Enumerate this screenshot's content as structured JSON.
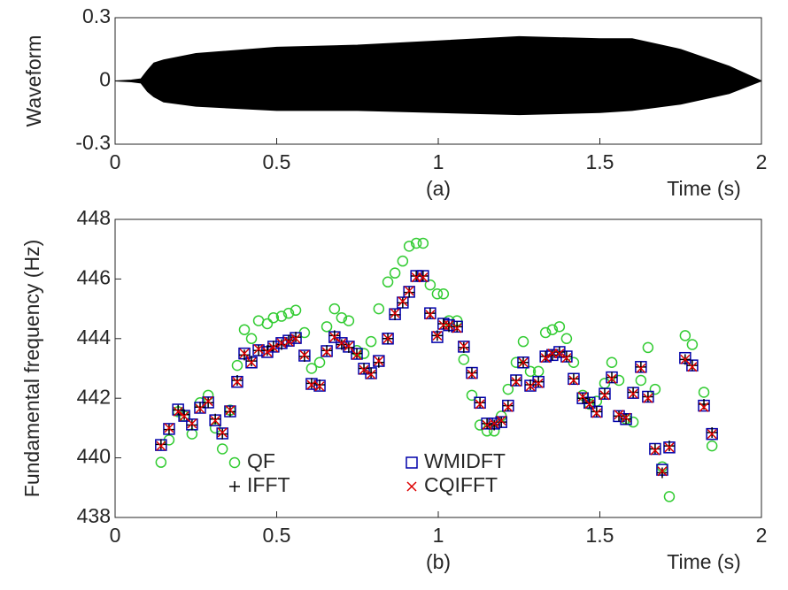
{
  "chart_data": [
    {
      "type": "area",
      "ylabel": "Waveform",
      "xlabel": "Time (s)",
      "caption": "(a)",
      "x": [
        0,
        0.05,
        0.08,
        0.1,
        0.12,
        0.15,
        0.25,
        0.5,
        0.75,
        1,
        1.25,
        1.5,
        1.6,
        1.75,
        1.9,
        2
      ],
      "series": [
        {
          "color": "#000000",
          "values": [
            0,
            0.004,
            0.01,
            0.05,
            0.085,
            0.1,
            0.13,
            0.16,
            0.17,
            0.19,
            0.21,
            0.2,
            0.2,
            0.15,
            0.07,
            0
          ]
        },
        {
          "color": "#000000",
          "values": [
            0,
            -0.004,
            -0.01,
            -0.05,
            -0.075,
            -0.1,
            -0.12,
            -0.14,
            -0.14,
            -0.15,
            -0.16,
            -0.15,
            -0.14,
            -0.11,
            -0.06,
            0
          ]
        }
      ],
      "xlim": [
        0,
        2
      ],
      "ylim": [
        -0.3,
        0.3
      ],
      "xticks": [
        0,
        0.5,
        1,
        1.5,
        2
      ],
      "yticks": [
        -0.3,
        0,
        0.3
      ]
    },
    {
      "type": "scatter",
      "ylabel": "Fundamental frequency (Hz)",
      "xlabel": "Time (s)",
      "caption": "(b)",
      "x": [
        0.142,
        0.167,
        0.195,
        0.214,
        0.238,
        0.263,
        0.288,
        0.31,
        0.332,
        0.356,
        0.378,
        0.4,
        0.422,
        0.444,
        0.471,
        0.49,
        0.515,
        0.537,
        0.559,
        0.586,
        0.608,
        0.633,
        0.655,
        0.679,
        0.701,
        0.723,
        0.748,
        0.77,
        0.792,
        0.816,
        0.844,
        0.866,
        0.89,
        0.91,
        0.932,
        0.953,
        0.975,
        0.997,
        1.016,
        1.033,
        1.058,
        1.079,
        1.104,
        1.129,
        1.151,
        1.173,
        1.195,
        1.216,
        1.241,
        1.263,
        1.285,
        1.31,
        1.332,
        1.353,
        1.375,
        1.397,
        1.419,
        1.447,
        1.468,
        1.49,
        1.515,
        1.537,
        1.559,
        1.581,
        1.603,
        1.627,
        1.649,
        1.671,
        1.693,
        1.715,
        1.764,
        1.786,
        1.822,
        1.847
      ],
      "series": [
        {
          "name": "QF",
          "color": "#33cc33",
          "marker": "circle",
          "values": [
            439.85,
            440.6,
            441.55,
            441.4,
            440.8,
            441.85,
            442.1,
            441.0,
            440.3,
            441.6,
            443.1,
            444.3,
            444.0,
            444.6,
            444.5,
            444.7,
            444.75,
            444.85,
            444.95,
            444.2,
            443.0,
            443.2,
            444.4,
            445.0,
            444.7,
            444.6,
            443.6,
            443.5,
            443.9,
            445.0,
            445.9,
            446.2,
            446.6,
            447.1,
            447.2,
            447.2,
            445.8,
            445.5,
            445.5,
            444.6,
            444.6,
            443.3,
            442.1,
            441.1,
            440.9,
            440.9,
            441.4,
            442.3,
            443.2,
            443.9,
            442.9,
            442.9,
            444.2,
            444.3,
            444.4,
            444.0,
            443.2,
            442.1,
            441.8,
            441.9,
            442.5,
            443.2,
            442.6,
            441.3,
            441.2,
            442.6,
            443.7,
            442.3,
            439.7,
            438.7,
            444.1,
            443.8,
            442.2,
            440.4
          ]
        },
        {
          "name": "WMIDFT",
          "color": "#0000aa",
          "marker": "square",
          "values": [
            440.43,
            440.97,
            441.62,
            441.41,
            441.12,
            441.68,
            441.86,
            441.26,
            440.82,
            441.56,
            442.55,
            443.5,
            443.2,
            443.61,
            443.55,
            443.73,
            443.85,
            443.93,
            444.02,
            443.43,
            442.48,
            442.42,
            443.58,
            444.05,
            443.85,
            443.73,
            443.49,
            442.99,
            442.84,
            443.25,
            444.0,
            444.82,
            445.21,
            445.57,
            446.1,
            446.1,
            444.85,
            444.05,
            444.5,
            444.45,
            444.4,
            443.73,
            442.85,
            441.85,
            441.15,
            441.15,
            441.2,
            441.75,
            442.6,
            443.2,
            442.42,
            442.55,
            443.4,
            443.45,
            443.55,
            443.4,
            442.65,
            442.0,
            441.85,
            441.55,
            442.15,
            442.7,
            441.4,
            441.3,
            442.18,
            443.05,
            442.05,
            440.3,
            439.6,
            440.35,
            443.35,
            443.1,
            441.75,
            440.8
          ]
        },
        {
          "name": "IFFT",
          "color": "#000000",
          "marker": "plus",
          "values": [
            440.45,
            440.95,
            441.6,
            441.45,
            441.1,
            441.7,
            441.85,
            441.3,
            440.8,
            441.55,
            442.6,
            443.45,
            443.25,
            443.6,
            443.6,
            443.75,
            443.8,
            443.95,
            444.05,
            443.4,
            442.5,
            442.45,
            443.6,
            444.1,
            443.8,
            443.7,
            443.5,
            443.0,
            442.85,
            443.2,
            444.0,
            444.8,
            445.2,
            445.55,
            446.1,
            446.1,
            444.85,
            444.1,
            444.5,
            444.4,
            444.4,
            443.7,
            442.85,
            441.85,
            441.15,
            441.1,
            441.2,
            441.75,
            442.6,
            443.2,
            442.45,
            442.55,
            443.4,
            443.45,
            443.55,
            443.4,
            442.65,
            442.0,
            441.85,
            441.55,
            442.15,
            442.7,
            441.4,
            441.3,
            442.2,
            443.05,
            442.05,
            440.3,
            439.5,
            440.4,
            443.3,
            443.1,
            441.8,
            440.85
          ]
        },
        {
          "name": "CQIFFT",
          "color": "#dd0000",
          "marker": "cross",
          "values": [
            440.4,
            441.0,
            441.55,
            441.4,
            441.15,
            441.65,
            441.9,
            441.25,
            440.85,
            441.6,
            442.55,
            443.5,
            443.2,
            443.65,
            443.55,
            443.7,
            443.85,
            443.9,
            444.0,
            443.45,
            442.45,
            442.4,
            443.55,
            444.05,
            443.85,
            443.75,
            443.45,
            442.95,
            442.8,
            443.25,
            444.0,
            444.85,
            445.25,
            445.6,
            446.05,
            446.05,
            444.8,
            444.1,
            444.45,
            444.45,
            444.35,
            443.75,
            442.8,
            441.8,
            441.1,
            441.15,
            441.25,
            441.7,
            442.55,
            443.2,
            442.4,
            442.5,
            443.35,
            443.5,
            443.5,
            443.35,
            442.6,
            442.05,
            441.8,
            441.5,
            442.1,
            442.65,
            441.45,
            441.35,
            442.15,
            443.0,
            442.0,
            440.25,
            439.55,
            440.35,
            443.3,
            443.05,
            441.7,
            440.8
          ]
        }
      ],
      "xlim": [
        0,
        2
      ],
      "ylim": [
        438,
        448
      ],
      "xticks": [
        0,
        0.5,
        1,
        1.5,
        2
      ],
      "yticks": [
        438,
        440,
        442,
        444,
        446,
        448
      ],
      "legend": "bottom-center"
    }
  ]
}
